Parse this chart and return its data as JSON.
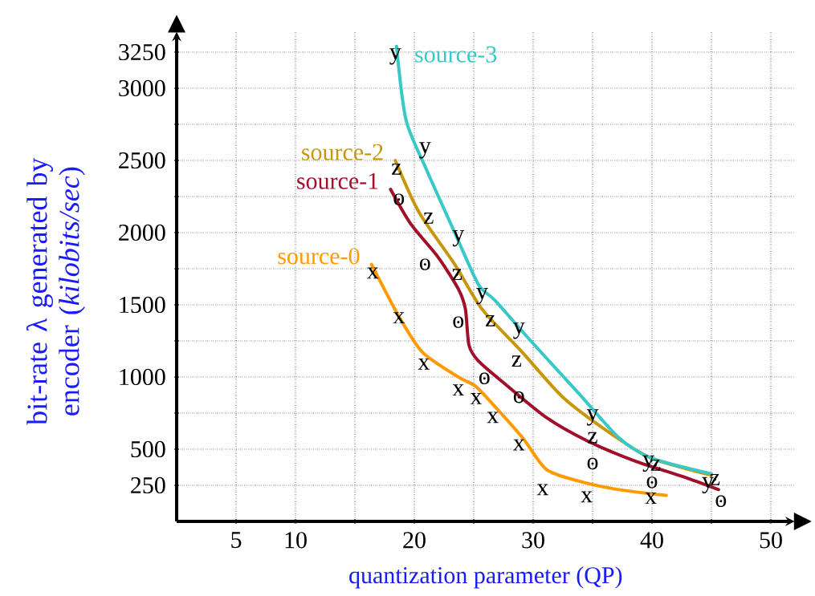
{
  "chart_data": {
    "type": "line",
    "xlabel": "quantization parameter (QP)",
    "ylabel": "bit-rate λ generated by encoder (*kilobits/sec*)",
    "xlim": [
      0,
      52
    ],
    "ylim": [
      0,
      3390
    ],
    "xticks": [
      5,
      10,
      {
        "value": 15,
        "label": null
      },
      20,
      {
        "value": 25,
        "label": null
      },
      30,
      {
        "value": 35,
        "label": null
      },
      40,
      {
        "value": 45,
        "label": null
      },
      50
    ],
    "yticks": [
      250,
      500,
      {
        "value": 750,
        "label": null
      },
      1000,
      {
        "value": 1250,
        "label": null
      },
      1500,
      {
        "value": 1750,
        "label": null
      },
      2000,
      {
        "value": 2250,
        "label": null
      },
      2500,
      {
        "value": 2750,
        "label": null
      },
      3000,
      3250
    ],
    "grid": true,
    "marker": "none",
    "line_style": "solid",
    "series": [
      {
        "name": "source-0",
        "color": "#ff9a00",
        "x": [
          16.4,
          18.7,
          20.7,
          23.7,
          25.1,
          26.4,
          29.1,
          31.1,
          33.8,
          37.2,
          41.2
        ],
        "values": [
          1780,
          1420,
          1170,
          1000,
          940,
          830,
          580,
          360,
          280,
          220,
          180
        ]
      },
      {
        "name": "source-1",
        "color": "#a0102a",
        "x": [
          18.0,
          19.7,
          22.0,
          23.7,
          24.3,
          24.6,
          25.4,
          27.8,
          31.1,
          34.5,
          38.5,
          42.6,
          45.6
        ],
        "values": [
          2300,
          2060,
          1830,
          1610,
          1470,
          1220,
          1110,
          940,
          720,
          560,
          420,
          310,
          220
        ]
      },
      {
        "name": "source-2",
        "color": "#c8960a",
        "x": [
          18.4,
          20.4,
          23.4,
          25.7,
          29.1,
          32.5,
          36.5,
          39.9,
          45.0
        ],
        "values": [
          2500,
          2140,
          1780,
          1470,
          1170,
          860,
          610,
          440,
          320
        ]
      },
      {
        "name": "source-3",
        "color": "#38c8c8",
        "x": [
          18.5,
          19.3,
          21.0,
          23.4,
          25.4,
          26.8,
          29.8,
          33.8,
          37.2,
          39.9,
          45.0
        ],
        "values": [
          3290,
          2780,
          2440,
          2000,
          1640,
          1530,
          1250,
          890,
          580,
          440,
          330
        ]
      },
      {
        "type": "scatter",
        "name": "y",
        "color": "#000000",
        "x": [
          18.4,
          20.9,
          23.7,
          25.7,
          28.8,
          35.0,
          39.7,
          44.7
        ],
        "values": [
          3220,
          2570,
          1960,
          1560,
          1320,
          720,
          400,
          250
        ]
      },
      {
        "type": "scatter",
        "name": "z",
        "color": "#000000",
        "x": [
          18.5,
          21.2,
          23.6,
          26.4,
          28.6,
          35.0,
          40.3,
          45.3
        ],
        "values": [
          2440,
          2100,
          1710,
          1390,
          1110,
          580,
          390,
          290
        ]
      },
      {
        "type": "scatter",
        "name": "o",
        "color": "#000000",
        "x": [
          18.7,
          20.9,
          23.7,
          25.9,
          28.8,
          35.0,
          40.0,
          45.8
        ],
        "values": [
          2230,
          1780,
          1380,
          990,
          860,
          400,
          270,
          140
        ]
      },
      {
        "type": "scatter",
        "name": "x",
        "color": "#000000",
        "x": [
          16.5,
          18.7,
          20.8,
          23.7,
          25.2,
          26.6,
          28.8,
          30.8,
          34.5,
          39.9
        ],
        "values": [
          1720,
          1410,
          1090,
          910,
          850,
          720,
          530,
          220,
          170,
          160
        ]
      }
    ]
  }
}
